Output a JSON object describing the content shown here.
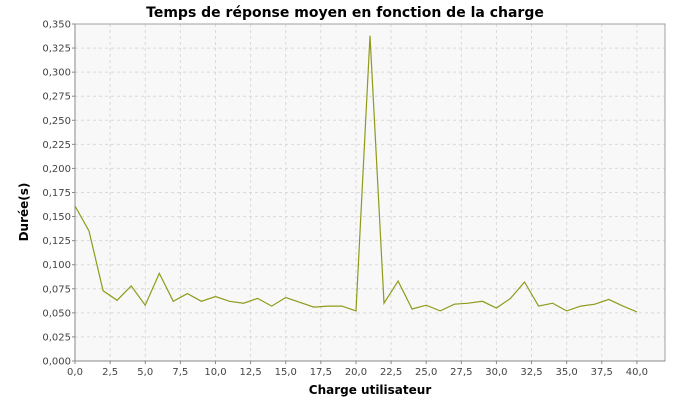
{
  "chart_data": {
    "type": "line",
    "title": "Temps de réponse moyen en fonction de la charge",
    "xlabel": "Charge utilisateur",
    "ylabel": "Durée(s)",
    "xlim": [
      0,
      42
    ],
    "ylim": [
      0,
      0.35
    ],
    "x_ticks": [
      0,
      2.5,
      5,
      7.5,
      10,
      12.5,
      15,
      17.5,
      20,
      22.5,
      25,
      27.5,
      30,
      32.5,
      35,
      37.5,
      40
    ],
    "x_tick_labels": [
      "0,0",
      "2,5",
      "5,0",
      "7,5",
      "10,0",
      "12,5",
      "15,0",
      "17,5",
      "20,0",
      "22,5",
      "25,0",
      "27,5",
      "30,0",
      "32,5",
      "35,0",
      "37,5",
      "40,0"
    ],
    "y_ticks": [
      0,
      0.025,
      0.05,
      0.075,
      0.1,
      0.125,
      0.15,
      0.175,
      0.2,
      0.225,
      0.25,
      0.275,
      0.3,
      0.325,
      0.35
    ],
    "y_tick_labels": [
      "0,000",
      "0,025",
      "0,050",
      "0,075",
      "0,100",
      "0,125",
      "0,150",
      "0,175",
      "0,200",
      "0,225",
      "0,250",
      "0,275",
      "0,300",
      "0,325",
      "0,350"
    ],
    "grid": true,
    "colors": {
      "series": "#8f9a1a",
      "plot_bg": "#f8f8f8",
      "grid": "#d9d9d9"
    },
    "series": [
      {
        "x": [
          0,
          1,
          2,
          3,
          4,
          5,
          6,
          7,
          8,
          9,
          10,
          11,
          12,
          13,
          14,
          15,
          16,
          17,
          18,
          19,
          20,
          21,
          22,
          23,
          24,
          25,
          26,
          27,
          28,
          29,
          30,
          31,
          32,
          33,
          34,
          35,
          36,
          37,
          38,
          39,
          40
        ],
        "values": [
          0.161,
          0.135,
          0.073,
          0.063,
          0.078,
          0.058,
          0.091,
          0.062,
          0.07,
          0.062,
          0.067,
          0.062,
          0.06,
          0.065,
          0.057,
          0.066,
          0.061,
          0.056,
          0.057,
          0.057,
          0.052,
          0.338,
          0.06,
          0.083,
          0.054,
          0.058,
          0.052,
          0.059,
          0.06,
          0.062,
          0.055,
          0.065,
          0.082,
          0.057,
          0.06,
          0.052,
          0.057,
          0.059,
          0.064,
          0.057,
          0.051
        ]
      }
    ]
  }
}
